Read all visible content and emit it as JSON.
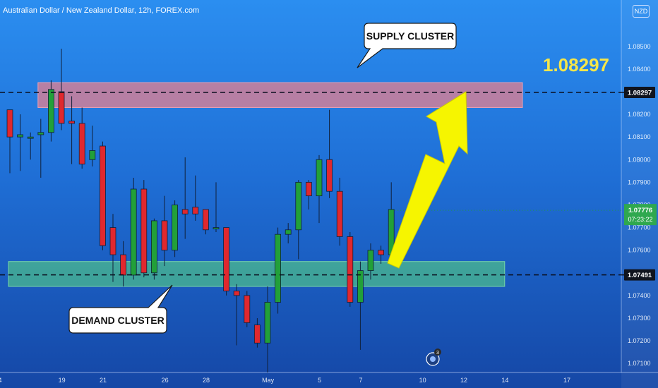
{
  "header": {
    "symbol_text": "Australian Dollar / New Zealand Dollar, 12h, FOREX.com",
    "currency_button": "NZD"
  },
  "annotations": {
    "supply_label": "SUPPLY CLUSTER",
    "demand_label": "DEMAND CLUSTER",
    "target_price_text": "1.08297",
    "countdown": "07:23:22",
    "event_badge_count": "3"
  },
  "colors": {
    "bull": "#22a039",
    "bear": "#e0282e",
    "supply_zone": "#e8808f",
    "demand_zone": "#4fc08a",
    "arrow": "#f6f500",
    "target_text": "#f5e64a",
    "current_price_bg": "#2fa84f"
  },
  "chart_data": {
    "type": "candlestick",
    "title": "Australian Dollar / New Zealand Dollar, 12h, FOREX.com",
    "ylim": [
      1.0706,
      1.0868
    ],
    "y_ticks": [
      "1.08500",
      "1.08400",
      "1.08300",
      "1.08200",
      "1.08100",
      "1.08000",
      "1.07900",
      "1.07800",
      "1.07700",
      "1.07600",
      "1.07500",
      "1.07400",
      "1.07300",
      "1.07200",
      "1.07100"
    ],
    "x_ticks": [
      "4",
      "19",
      "21",
      "26",
      "28",
      "May",
      "5",
      "7",
      "10",
      "12",
      "14",
      "17"
    ],
    "x_tick_slots": [
      0,
      6,
      10,
      16,
      20,
      26,
      31,
      35,
      41,
      45,
      49,
      55
    ],
    "candles": [
      {
        "o": 1.0822,
        "h": 1.0822,
        "l": 1.0794,
        "c": 1.081
      },
      {
        "o": 1.081,
        "h": 1.082,
        "l": 1.0795,
        "c": 1.0811
      },
      {
        "o": 1.081,
        "h": 1.0812,
        "l": 1.08,
        "c": 1.081
      },
      {
        "o": 1.0811,
        "h": 1.0818,
        "l": 1.0792,
        "c": 1.0812
      },
      {
        "o": 1.0812,
        "h": 1.0835,
        "l": 1.0808,
        "c": 1.0831
      },
      {
        "o": 1.083,
        "h": 1.0849,
        "l": 1.0813,
        "c": 1.0816
      },
      {
        "o": 1.0817,
        "h": 1.0828,
        "l": 1.0798,
        "c": 1.0816
      },
      {
        "o": 1.0816,
        "h": 1.0823,
        "l": 1.0796,
        "c": 1.0798
      },
      {
        "o": 1.08,
        "h": 1.0815,
        "l": 1.0797,
        "c": 1.0804
      },
      {
        "o": 1.0806,
        "h": 1.0808,
        "l": 1.076,
        "c": 1.0762
      },
      {
        "o": 1.077,
        "h": 1.0776,
        "l": 1.0746,
        "c": 1.0758
      },
      {
        "o": 1.0758,
        "h": 1.0764,
        "l": 1.0744,
        "c": 1.0749
      },
      {
        "o": 1.0749,
        "h": 1.0792,
        "l": 1.0747,
        "c": 1.0787
      },
      {
        "o": 1.0787,
        "h": 1.0791,
        "l": 1.0748,
        "c": 1.075
      },
      {
        "o": 1.075,
        "h": 1.0774,
        "l": 1.0747,
        "c": 1.0773
      },
      {
        "o": 1.0773,
        "h": 1.0784,
        "l": 1.0753,
        "c": 1.076
      },
      {
        "o": 1.076,
        "h": 1.0782,
        "l": 1.0757,
        "c": 1.078
      },
      {
        "o": 1.0778,
        "h": 1.0801,
        "l": 1.0765,
        "c": 1.0776
      },
      {
        "o": 1.0779,
        "h": 1.0793,
        "l": 1.0773,
        "c": 1.0776
      },
      {
        "o": 1.0778,
        "h": 1.0778,
        "l": 1.0767,
        "c": 1.0769
      },
      {
        "o": 1.077,
        "h": 1.079,
        "l": 1.0768,
        "c": 1.077
      },
      {
        "o": 1.077,
        "h": 1.077,
        "l": 1.074,
        "c": 1.0742
      },
      {
        "o": 1.0742,
        "h": 1.0745,
        "l": 1.0718,
        "c": 1.074
      },
      {
        "o": 1.074,
        "h": 1.0742,
        "l": 1.0726,
        "c": 1.0728
      },
      {
        "o": 1.0727,
        "h": 1.073,
        "l": 1.0717,
        "c": 1.0719
      },
      {
        "o": 1.0719,
        "h": 1.0744,
        "l": 1.0706,
        "c": 1.0737
      },
      {
        "o": 1.0737,
        "h": 1.077,
        "l": 1.0732,
        "c": 1.0767
      },
      {
        "o": 1.0767,
        "h": 1.0772,
        "l": 1.0763,
        "c": 1.0769
      },
      {
        "o": 1.0769,
        "h": 1.0791,
        "l": 1.0756,
        "c": 1.079
      },
      {
        "o": 1.079,
        "h": 1.0791,
        "l": 1.0778,
        "c": 1.0784
      },
      {
        "o": 1.0784,
        "h": 1.0802,
        "l": 1.0772,
        "c": 1.08
      },
      {
        "o": 1.08,
        "h": 1.0822,
        "l": 1.0783,
        "c": 1.0786
      },
      {
        "o": 1.0786,
        "h": 1.0792,
        "l": 1.0762,
        "c": 1.0766
      },
      {
        "o": 1.0766,
        "h": 1.0768,
        "l": 1.0735,
        "c": 1.0737
      },
      {
        "o": 1.0737,
        "h": 1.0755,
        "l": 1.0716,
        "c": 1.0751
      },
      {
        "o": 1.0751,
        "h": 1.0763,
        "l": 1.0747,
        "c": 1.076
      },
      {
        "o": 1.076,
        "h": 1.0762,
        "l": 1.0754,
        "c": 1.0758
      },
      {
        "o": 1.0758,
        "h": 1.079,
        "l": 1.0755,
        "c": 1.0778
      }
    ],
    "supply_zone": {
      "from": 1.0823,
      "to": 1.0834,
      "start_slot": 3,
      "end_slot": 50
    },
    "demand_zone": {
      "from": 1.0744,
      "to": 1.0755,
      "start_slot": 0,
      "end_slot": 48
    },
    "levels": [
      {
        "value": 1.08297,
        "label": "1.08297",
        "style": "dashed"
      },
      {
        "value": 1.07491,
        "label": "1.07491",
        "style": "dashed"
      }
    ],
    "current_price": {
      "value": 1.07776,
      "label": "1.07776"
    }
  }
}
